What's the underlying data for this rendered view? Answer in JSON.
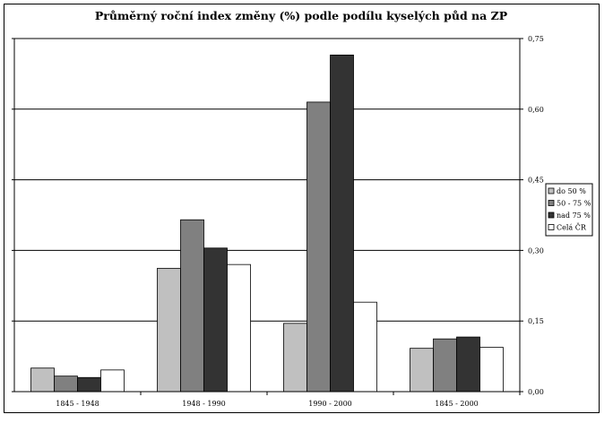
{
  "chart_data": {
    "type": "bar",
    "title": "Průměrný roční index změny (%) podle podílu kyselých půd na ZP",
    "categories": [
      "1845 - 1948",
      "1948 - 1990",
      "1990 - 2000",
      "1845 - 2000"
    ],
    "series": [
      {
        "name": "do 50 %",
        "color": "#c0c0c0",
        "values": [
          0.05,
          0.262,
          0.145,
          0.092
        ]
      },
      {
        "name": "50 - 75 %",
        "color": "#808080",
        "values": [
          0.033,
          0.365,
          0.615,
          0.112
        ]
      },
      {
        "name": "nad 75 %",
        "color": "#333333",
        "values": [
          0.03,
          0.305,
          0.715,
          0.116
        ]
      },
      {
        "name": "Celá ČR",
        "color": "#ffffff",
        "values": [
          0.046,
          0.27,
          0.19,
          0.094
        ]
      }
    ],
    "ylim": [
      0,
      0.75
    ],
    "yticks": [
      "0,00",
      "0,15",
      "0,30",
      "0,45",
      "0,60",
      "0,75"
    ],
    "ytick_values": [
      0,
      0.15,
      0.3,
      0.45,
      0.6,
      0.75
    ],
    "y_axis_side": "right",
    "grid": true,
    "legend_position": "right"
  }
}
